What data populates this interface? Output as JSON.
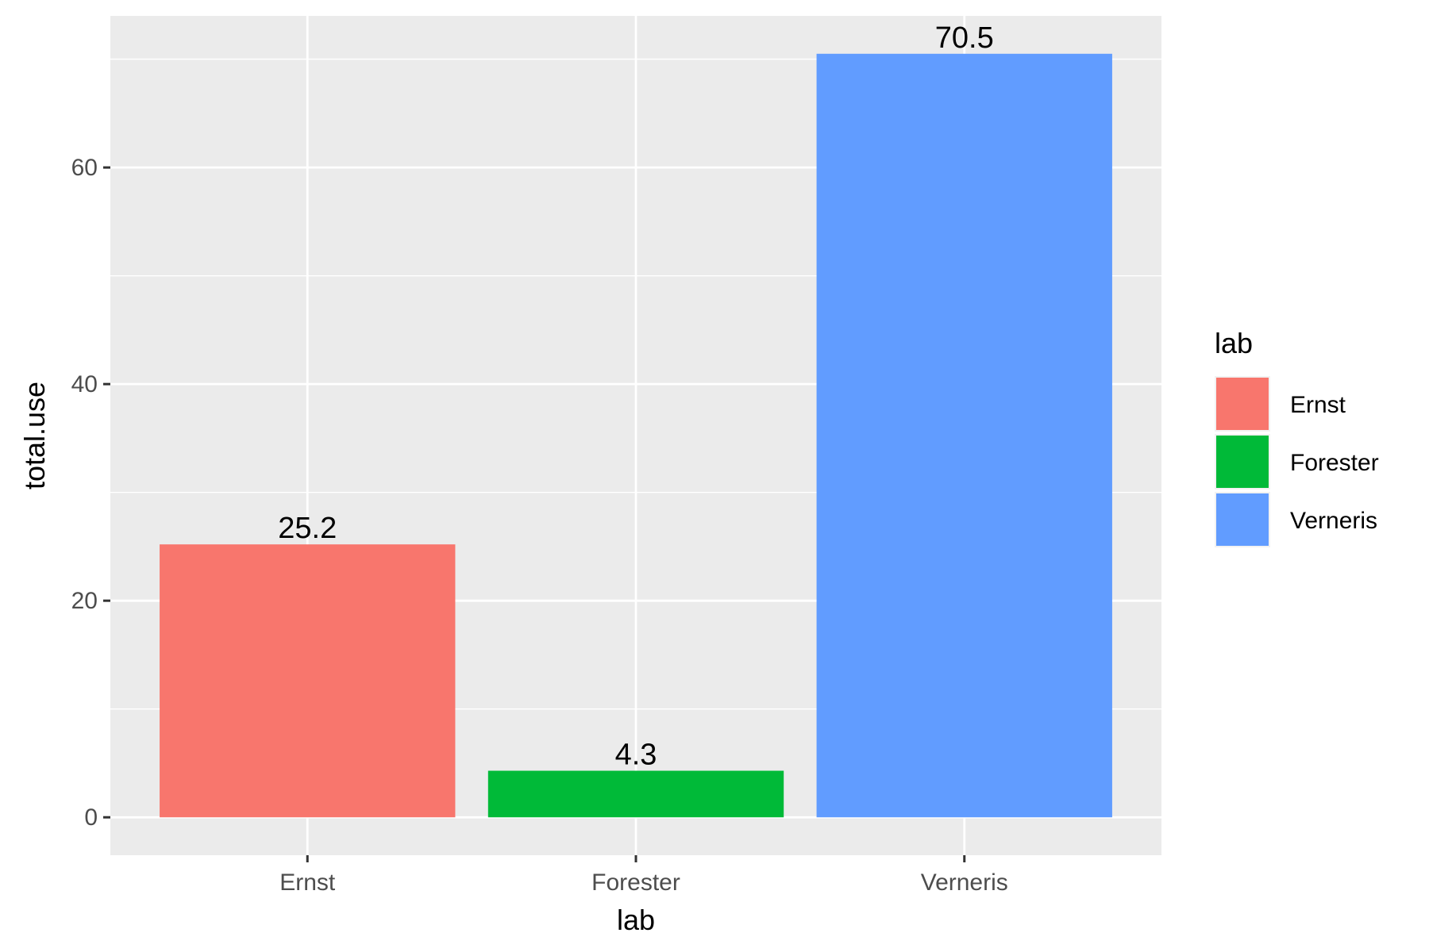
{
  "chart_data": {
    "type": "bar",
    "categories": [
      "Ernst",
      "Forester",
      "Verneris"
    ],
    "values": [
      25.2,
      4.3,
      70.5
    ],
    "data_labels": [
      "25.2",
      "4.3",
      "70.5"
    ],
    "colors": [
      "#F8766D",
      "#00BA38",
      "#619CFF"
    ],
    "xlabel": "lab",
    "ylabel": "total.use",
    "ylim": [
      -3.5,
      74
    ],
    "yticks": [
      0,
      20,
      40,
      60
    ],
    "ytick_labels": [
      "0",
      "20",
      "40",
      "60"
    ],
    "y_minor_ticks": [
      10,
      30,
      50,
      70
    ],
    "grid": true,
    "panel_background": "#EBEBEB",
    "legend": {
      "title": "lab",
      "placement": "right",
      "entries": [
        "Ernst",
        "Forester",
        "Verneris"
      ]
    }
  }
}
